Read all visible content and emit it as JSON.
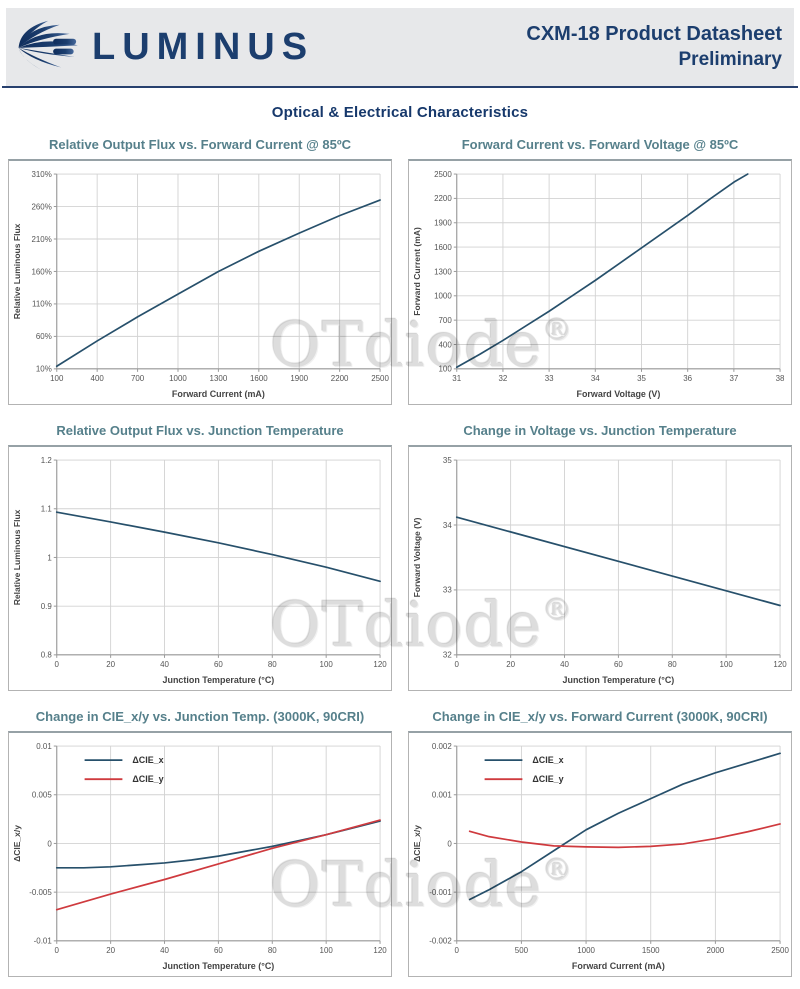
{
  "header": {
    "brand": "LUMINUS",
    "doc_title": "CXM-18 Product Datasheet",
    "doc_status": "Preliminary"
  },
  "page_heading": "Optical & Electrical Characteristics",
  "watermark": {
    "text": "OTdiode",
    "reg": "®"
  },
  "colors": {
    "navy": "#1c3e6e",
    "chart_title": "#56808b",
    "curve_navy": "#27506b",
    "curve_red": "#cf3a3e",
    "grid": "#d2d2d2",
    "axis": "#9a9a9a"
  },
  "chart_data": [
    {
      "type": "line",
      "title": "Relative Output Flux vs. Forward Current @ 85ºC",
      "xlabel": "Forward Current (mA)",
      "ylabel": "Relative Luminous Flux",
      "xlim": [
        100,
        2500
      ],
      "ylim": [
        0.1,
        3.1
      ],
      "xticks": [
        100,
        400,
        700,
        1000,
        1300,
        1600,
        1900,
        2200,
        2500
      ],
      "xtick_labels": [
        "100",
        "400",
        "700",
        "1000",
        "1300",
        "1600",
        "1900",
        "2200",
        "2500"
      ],
      "yticks": [
        0.1,
        0.6,
        1.1,
        1.6,
        2.1,
        2.6,
        3.1
      ],
      "ytick_labels": [
        "10%",
        "60%",
        "110%",
        "160%",
        "210%",
        "260%",
        "310%"
      ],
      "series": [
        {
          "name": "Relative Flux",
          "color": "#27506b",
          "x": [
            100,
            400,
            700,
            1000,
            1300,
            1600,
            1900,
            2200,
            2500
          ],
          "y": [
            0.14,
            0.53,
            0.9,
            1.25,
            1.6,
            1.91,
            2.19,
            2.46,
            2.7
          ]
        }
      ]
    },
    {
      "type": "line",
      "title": "Forward Current vs. Forward Voltage @ 85ºC",
      "xlabel": "Forward Voltage (V)",
      "ylabel": "Forward Current (mA)",
      "xlim": [
        31,
        38
      ],
      "ylim": [
        100,
        2500
      ],
      "xticks": [
        31,
        32,
        33,
        34,
        35,
        36,
        37,
        38
      ],
      "xtick_labels": [
        "31",
        "32",
        "33",
        "34",
        "35",
        "36",
        "37",
        "38"
      ],
      "yticks": [
        100,
        400,
        700,
        1000,
        1300,
        1600,
        1900,
        2200,
        2500
      ],
      "ytick_labels": [
        "100",
        "400",
        "700",
        "1000",
        "1300",
        "1600",
        "1900",
        "2200",
        "2500"
      ],
      "series": [
        {
          "name": "Forward Current",
          "color": "#27506b",
          "x": [
            31,
            31.5,
            32,
            32.5,
            33,
            33.5,
            34,
            34.5,
            35,
            35.5,
            36,
            36.5,
            37,
            37.3
          ],
          "y": [
            120,
            280,
            450,
            630,
            810,
            1000,
            1190,
            1390,
            1590,
            1790,
            1990,
            2200,
            2400,
            2500
          ]
        }
      ]
    },
    {
      "type": "line",
      "title": "Relative Output Flux vs. Junction Temperature",
      "xlabel": "Junction Temperature (°C)",
      "ylabel": "Relative Luminous Flux",
      "xlim": [
        0,
        120
      ],
      "ylim": [
        0.8,
        1.2
      ],
      "xticks": [
        0,
        20,
        40,
        60,
        80,
        100,
        120
      ],
      "xtick_labels": [
        "0",
        "20",
        "40",
        "60",
        "80",
        "100",
        "120"
      ],
      "yticks": [
        0.8,
        0.9,
        1.0,
        1.1,
        1.2
      ],
      "ytick_labels": [
        "0.8",
        "0.9",
        "1",
        "1.1",
        "1.2"
      ],
      "series": [
        {
          "name": "Relative Flux",
          "color": "#27506b",
          "x": [
            0,
            20,
            40,
            60,
            80,
            100,
            120
          ],
          "y": [
            1.093,
            1.073,
            1.052,
            1.03,
            1.006,
            0.98,
            0.951
          ]
        }
      ]
    },
    {
      "type": "line",
      "title": "Change in Voltage vs. Junction Temperature",
      "xlabel": "Junction Temperature (°C)",
      "ylabel": "Forward Voltage (V)",
      "xlim": [
        0,
        120
      ],
      "ylim": [
        32,
        35
      ],
      "xticks": [
        0,
        20,
        40,
        60,
        80,
        100,
        120
      ],
      "xtick_labels": [
        "0",
        "20",
        "40",
        "60",
        "80",
        "100",
        "120"
      ],
      "yticks": [
        32,
        33,
        34,
        35
      ],
      "ytick_labels": [
        "32",
        "33",
        "34",
        "35"
      ],
      "series": [
        {
          "name": "Forward Voltage",
          "color": "#27506b",
          "x": [
            0,
            120
          ],
          "y": [
            34.12,
            32.76
          ]
        }
      ]
    },
    {
      "type": "line",
      "title": "Change in CIE_x/y vs. Junction Temp. (3000K, 90CRI)",
      "xlabel": "Junction Temperature (°C)",
      "ylabel": "ΔCIE_x/y",
      "xlim": [
        0,
        120
      ],
      "ylim": [
        -0.01,
        0.01
      ],
      "xticks": [
        0,
        20,
        40,
        60,
        80,
        100,
        120
      ],
      "xtick_labels": [
        "0",
        "20",
        "40",
        "60",
        "80",
        "100",
        "120"
      ],
      "yticks": [
        -0.01,
        -0.005,
        0,
        0.005,
        0.01
      ],
      "ytick_labels": [
        "-0.01",
        "-0.005",
        "0",
        "0.005",
        "0.01"
      ],
      "legend": [
        {
          "label": "ΔCIE_x",
          "color": "#27506b"
        },
        {
          "label": "ΔCIE_y",
          "color": "#cf3a3e"
        }
      ],
      "series": [
        {
          "name": "ΔCIE_x",
          "color": "#27506b",
          "x": [
            0,
            10,
            20,
            30,
            40,
            50,
            60,
            70,
            80,
            90,
            100,
            110,
            120
          ],
          "y": [
            -0.0025,
            -0.0025,
            -0.0024,
            -0.0022,
            -0.002,
            -0.0017,
            -0.0013,
            -0.0008,
            -0.0003,
            0.0003,
            0.0009,
            0.0016,
            0.0023
          ]
        },
        {
          "name": "ΔCIE_y",
          "color": "#cf3a3e",
          "x": [
            0,
            20,
            40,
            60,
            80,
            100,
            120
          ],
          "y": [
            -0.0068,
            -0.0052,
            -0.0037,
            -0.0021,
            -0.0005,
            0.0009,
            0.0024
          ]
        }
      ]
    },
    {
      "type": "line",
      "title": "Change in CIE_x/y vs. Forward Current (3000K, 90CRI)",
      "xlabel": "Forward Current (mA)",
      "ylabel": "ΔCIE_x/y",
      "xlim": [
        0,
        2500
      ],
      "ylim": [
        -0.002,
        0.002
      ],
      "xticks": [
        0,
        500,
        1000,
        1500,
        2000,
        2500
      ],
      "xtick_labels": [
        "0",
        "500",
        "1000",
        "1500",
        "2000",
        "2500"
      ],
      "yticks": [
        -0.002,
        -0.001,
        0,
        0.001,
        0.002
      ],
      "ytick_labels": [
        "-0.002",
        "-0.001",
        "0",
        "0.001",
        "0.002"
      ],
      "legend": [
        {
          "label": "ΔCIE_x",
          "color": "#27506b"
        },
        {
          "label": "ΔCIE_y",
          "color": "#cf3a3e"
        }
      ],
      "series": [
        {
          "name": "ΔCIE_x",
          "color": "#27506b",
          "x": [
            100,
            250,
            500,
            750,
            1000,
            1250,
            1500,
            1750,
            2000,
            2250,
            2500
          ],
          "y": [
            -0.00115,
            -0.00095,
            -0.00058,
            -0.00015,
            0.00028,
            0.00062,
            0.00092,
            0.00122,
            0.00145,
            0.00165,
            0.00185
          ]
        },
        {
          "name": "ΔCIE_y",
          "color": "#cf3a3e",
          "x": [
            100,
            250,
            500,
            750,
            1000,
            1250,
            1500,
            1750,
            2000,
            2250,
            2500
          ],
          "y": [
            0.00025,
            0.00014,
            3e-05,
            -5e-05,
            -7e-05,
            -8e-05,
            -6e-05,
            -1e-05,
            0.0001,
            0.00024,
            0.0004
          ]
        }
      ]
    }
  ]
}
